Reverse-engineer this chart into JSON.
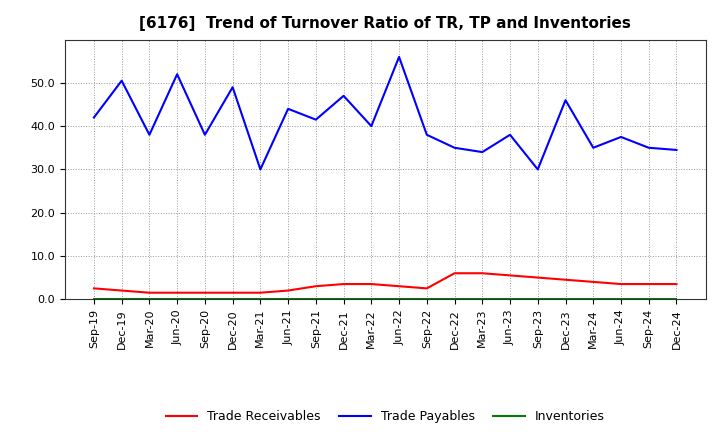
{
  "title": "[6176]  Trend of Turnover Ratio of TR, TP and Inventories",
  "x_labels": [
    "Sep-19",
    "Dec-19",
    "Mar-20",
    "Jun-20",
    "Sep-20",
    "Dec-20",
    "Mar-21",
    "Jun-21",
    "Sep-21",
    "Dec-21",
    "Mar-22",
    "Jun-22",
    "Sep-22",
    "Dec-22",
    "Mar-23",
    "Jun-23",
    "Sep-23",
    "Dec-23",
    "Mar-24",
    "Jun-24",
    "Sep-24",
    "Dec-24"
  ],
  "trade_receivables": [
    2.5,
    2.0,
    1.5,
    1.5,
    1.5,
    1.5,
    1.5,
    2.0,
    3.0,
    3.5,
    3.5,
    3.0,
    2.5,
    6.0,
    6.0,
    5.5,
    5.0,
    4.5,
    4.0,
    3.5,
    3.5,
    3.5
  ],
  "trade_payables": [
    42.0,
    50.5,
    38.0,
    52.0,
    38.0,
    49.0,
    30.0,
    44.0,
    41.5,
    47.0,
    40.0,
    56.0,
    38.0,
    35.0,
    34.0,
    38.0,
    30.0,
    46.0,
    35.0,
    37.5,
    35.0,
    34.5
  ],
  "inventories": [
    0.0,
    0.0,
    0.0,
    0.0,
    0.0,
    0.0,
    0.0,
    0.0,
    0.0,
    0.0,
    0.0,
    0.0,
    0.0,
    0.0,
    0.0,
    0.0,
    0.0,
    0.0,
    0.0,
    0.0,
    0.0,
    0.0
  ],
  "ylim": [
    0,
    60
  ],
  "yticks": [
    0.0,
    10.0,
    20.0,
    30.0,
    40.0,
    50.0
  ],
  "tr_color": "#FF0000",
  "tp_color": "#0000FF",
  "inv_color": "#008000",
  "bg_color": "#FFFFFF",
  "grid_color": "#999999",
  "title_fontsize": 11,
  "tick_fontsize": 8,
  "legend_fontsize": 9,
  "legend_labels": [
    "Trade Receivables",
    "Trade Payables",
    "Inventories"
  ]
}
